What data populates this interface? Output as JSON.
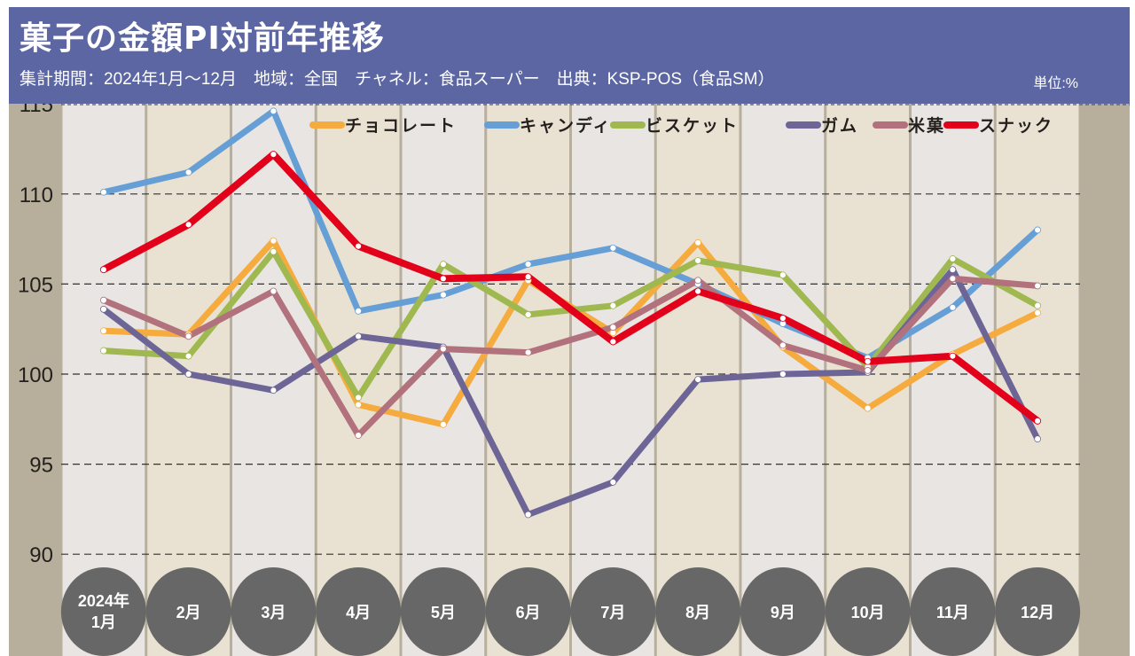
{
  "header": {
    "title": "菓子の金額PI対前年推移",
    "subtitle": "集計期間：2024年1月～12月　地域：全国　チャネル：食品スーパー　出典：KSP-POS（食品SM）",
    "unit": "単位:%"
  },
  "colors": {
    "header_bg": "#5c66a3",
    "frame": "#b7af9c",
    "col_light": "#e8e5e2",
    "col_beige": "#e9e2d2",
    "month_circle": "#666766"
  },
  "chart_data": {
    "type": "line",
    "title": "菓子の金額PI対前年推移",
    "xlabel": "",
    "ylabel": "単位:%",
    "ylim": [
      87,
      115.5
    ],
    "yticks": [
      90,
      95,
      100,
      105,
      110,
      115
    ],
    "ytick_labels": [
      "90",
      "95",
      "100",
      "105",
      "110",
      "115"
    ],
    "grid": "horizontal dashed",
    "legend_position": "top-right",
    "categories": [
      "2024年\n1月",
      "2月",
      "3月",
      "4月",
      "5月",
      "6月",
      "7月",
      "8月",
      "9月",
      "10月",
      "11月",
      "12月"
    ],
    "category_lines": [
      [
        "2024年",
        "1月"
      ],
      [
        "2月"
      ],
      [
        "3月"
      ],
      [
        "4月"
      ],
      [
        "5月"
      ],
      [
        "6月"
      ],
      [
        "7月"
      ],
      [
        "8月"
      ],
      [
        "9月"
      ],
      [
        "10月"
      ],
      [
        "11月"
      ],
      [
        "12月"
      ]
    ],
    "series": [
      {
        "name": "チョコレート",
        "color": "#f5ab3e",
        "values": [
          102.4,
          102.2,
          107.4,
          98.3,
          97.2,
          105.2,
          102.3,
          107.3,
          101.5,
          98.1,
          101.1,
          103.4
        ]
      },
      {
        "name": "キャンディ",
        "color": "#669fd6",
        "values": [
          110.1,
          111.2,
          114.6,
          103.5,
          104.4,
          106.1,
          107.0,
          105.0,
          102.8,
          100.9,
          103.7,
          108.0
        ]
      },
      {
        "name": "ビスケット",
        "color": "#9fb84f",
        "values": [
          101.3,
          101.0,
          106.8,
          98.7,
          106.1,
          103.3,
          103.8,
          106.3,
          105.5,
          100.4,
          106.4,
          103.8
        ]
      },
      {
        "name": "ガム",
        "color": "#6e6597",
        "values": [
          103.6,
          100.0,
          99.1,
          102.1,
          101.5,
          92.2,
          94.0,
          99.7,
          100.0,
          100.1,
          105.8,
          96.4
        ]
      },
      {
        "name": "米菓",
        "color": "#b2727d",
        "values": [
          104.1,
          102.1,
          104.6,
          96.6,
          101.4,
          101.2,
          102.6,
          105.2,
          101.6,
          100.2,
          105.3,
          104.9
        ]
      },
      {
        "name": "スナック",
        "color": "#e3001b",
        "values": [
          105.8,
          108.3,
          112.2,
          107.1,
          105.3,
          105.4,
          101.8,
          104.6,
          103.1,
          100.7,
          101.0,
          97.4
        ]
      }
    ]
  }
}
